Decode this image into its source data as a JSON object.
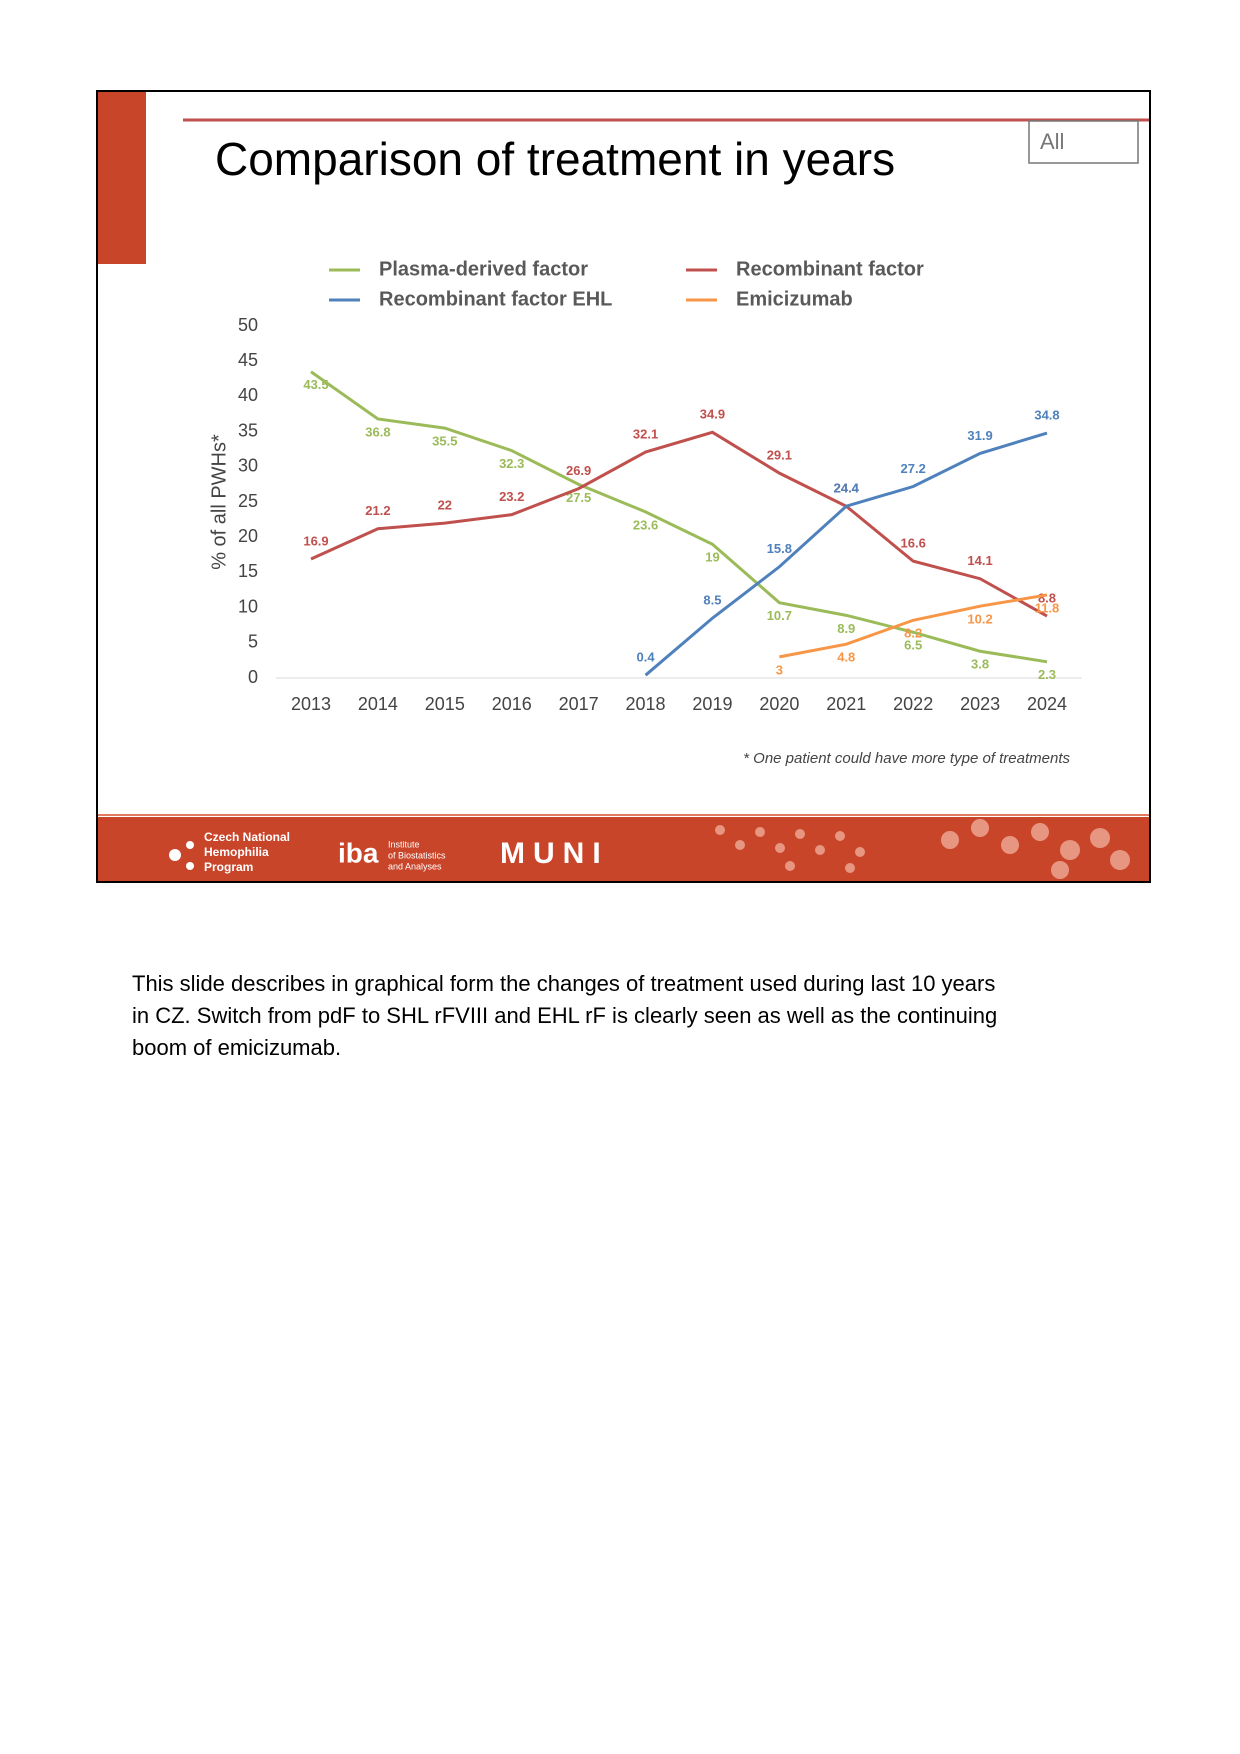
{
  "slide": {
    "title": "Comparison of treatment in years",
    "badge": "All",
    "footnote": "* One patient could have more type of treatments",
    "logos": {
      "cnhp": [
        "Czech National",
        "Hemophilia",
        "Program"
      ],
      "iba": "iba",
      "iba_name": [
        "Institute",
        "of Biostatistics",
        "and Analyses"
      ],
      "muni": "MUNI"
    }
  },
  "chart_data": {
    "type": "line",
    "y_label": "% of all PWHs*",
    "categories": [
      "2013",
      "2014",
      "2015",
      "2016",
      "2017",
      "2018",
      "2019",
      "2020",
      "2021",
      "2022",
      "2023",
      "2024"
    ],
    "ylim": [
      0,
      50
    ],
    "yticks": [
      0,
      5,
      10,
      15,
      20,
      25,
      30,
      35,
      40,
      45,
      50
    ],
    "series": [
      {
        "name": "Plasma-derived factor",
        "color": "#9bbb59",
        "values": [
          43.5,
          36.8,
          35.5,
          32.3,
          27.5,
          23.6,
          19,
          10.7,
          8.9,
          6.5,
          3.8,
          2.3
        ]
      },
      {
        "name": "Recombinant factor",
        "color": "#c0504d",
        "values": [
          16.9,
          21.2,
          22,
          23.2,
          26.9,
          32.1,
          34.9,
          29.1,
          24.4,
          16.6,
          14.1,
          8.8
        ]
      },
      {
        "name": "Recombinant factor EHL",
        "color": "#4f81bd",
        "values": [
          null,
          null,
          null,
          null,
          null,
          0.4,
          8.5,
          15.8,
          24.4,
          27.2,
          31.9,
          34.8
        ]
      },
      {
        "name": "Emicizumab",
        "color": "#f79646",
        "values": [
          null,
          null,
          null,
          null,
          null,
          null,
          null,
          3,
          4.8,
          8.2,
          10.2,
          11.8
        ]
      }
    ]
  },
  "paragraph": [
    "This slide describes in graphical form the changes of treatment used during last 10 years",
    "in CZ. Switch from pdF to SHL rFVIII and EHL rF is clearly seen as well as the continuing",
    "boom of emicizumab."
  ]
}
